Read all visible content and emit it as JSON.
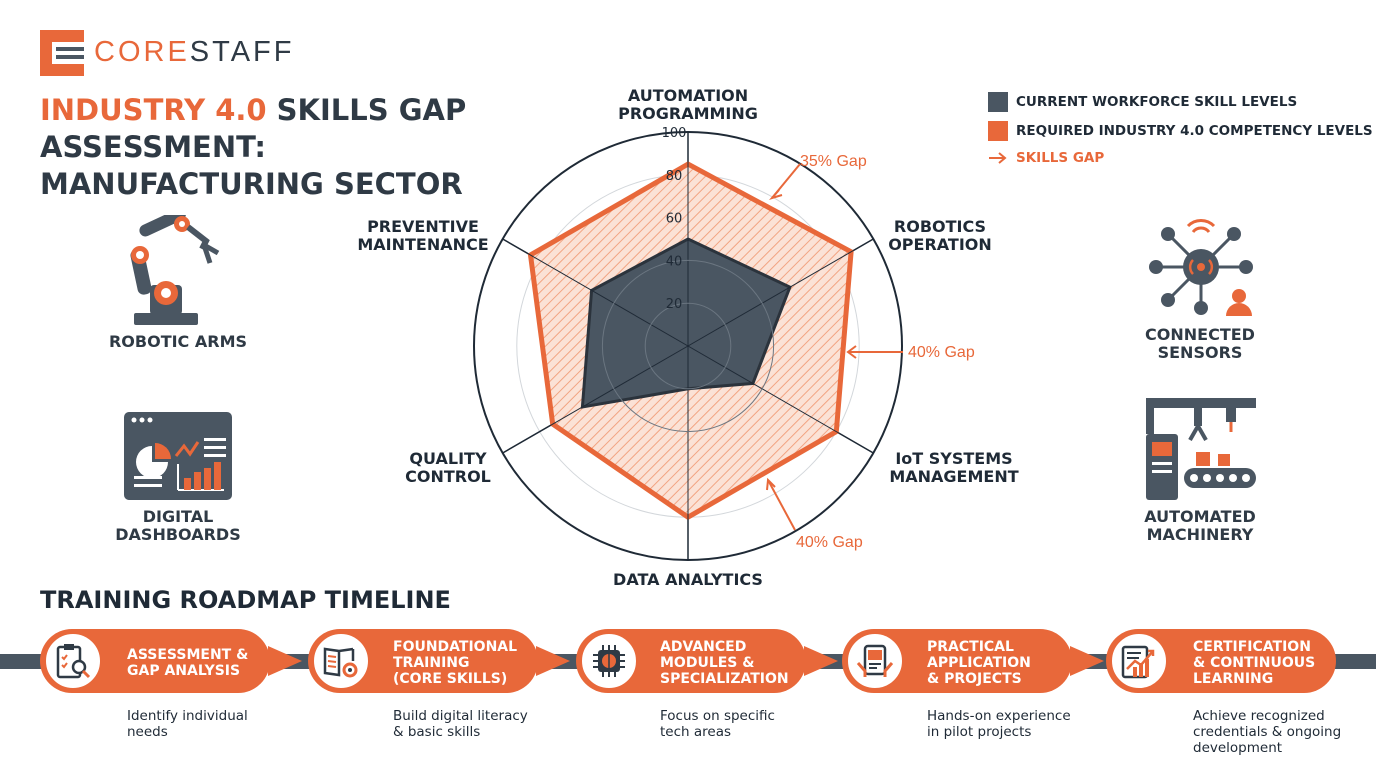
{
  "brand": {
    "part1": "CORE",
    "part2": "STAFF"
  },
  "title": {
    "highlight": "INDUSTRY 4.0",
    "rest_line1": " SKILLS GAP",
    "line2": "ASSESSMENT:",
    "line3": "MANUFACTURING SECTOR"
  },
  "side_icons": {
    "robotic_arms": "ROBOTIC ARMS",
    "digital_dashboards": "DIGITAL DASHBOARDS",
    "connected_sensors": "CONNECTED SENSORS",
    "automated_machinery": "AUTOMATED MACHINERY"
  },
  "legend": {
    "current": "CURRENT WORKFORCE SKILL LEVELS",
    "required": "REQUIRED INDUSTRY 4.0 COMPETENCY LEVELS",
    "gap": "SKILLS GAP"
  },
  "colors": {
    "accent": "#e8683a",
    "dark": "#4a5662",
    "text": "#1f2a36"
  },
  "chart_data": {
    "type": "radar",
    "axes": [
      "AUTOMATION PROGRAMMING",
      "ROBOTICS OPERATION",
      "IoT SYSTEMS MANAGEMENT",
      "DATA ANALYTICS",
      "QUALITY CONTROL",
      "PREVENTIVE MAINTENANCE"
    ],
    "ticks": [
      "20",
      "40",
      "60",
      "80",
      "100"
    ],
    "range": [
      0,
      100
    ],
    "series": [
      {
        "name": "CURRENT WORKFORCE SKILL LEVELS",
        "values": [
          50,
          55,
          35,
          20,
          57,
          52
        ]
      },
      {
        "name": "REQUIRED INDUSTRY 4.0 COMPETENCY LEVELS",
        "values": [
          85,
          88,
          80,
          80,
          73,
          85
        ]
      }
    ],
    "annotations": [
      "35% Gap",
      "40% Gap",
      "40% Gap"
    ]
  },
  "timeline": {
    "title": "TRAINING ROADMAP TIMELINE",
    "steps": [
      {
        "label": [
          "ASSESSMENT &",
          "GAP ANALYSIS"
        ],
        "desc": [
          "Identify individual",
          "needs"
        ],
        "icon": "clipboard-magnifier-icon"
      },
      {
        "label": [
          "FOUNDATIONAL",
          "TRAINING",
          "(CORE SKILLS)"
        ],
        "desc": [
          "Build digital literacy",
          "& basic skills"
        ],
        "icon": "book-gear-icon"
      },
      {
        "label": [
          "ADVANCED",
          "MODULES &",
          "SPECIALIZATION"
        ],
        "desc": [
          "Focus on specific",
          "tech areas"
        ],
        "icon": "chip-brain-icon"
      },
      {
        "label": [
          "PRACTICAL",
          "APPLICATION",
          "& PROJECTS"
        ],
        "desc": [
          "Hands-on experience",
          "in pilot projects"
        ],
        "icon": "tablet-hands-icon"
      },
      {
        "label": [
          "CERTIFICATION",
          "& CONTINUOUS",
          "LEARNING"
        ],
        "desc": [
          "Achieve recognized",
          "credentials & ongoing",
          "development"
        ],
        "icon": "certificate-chart-icon"
      }
    ]
  }
}
